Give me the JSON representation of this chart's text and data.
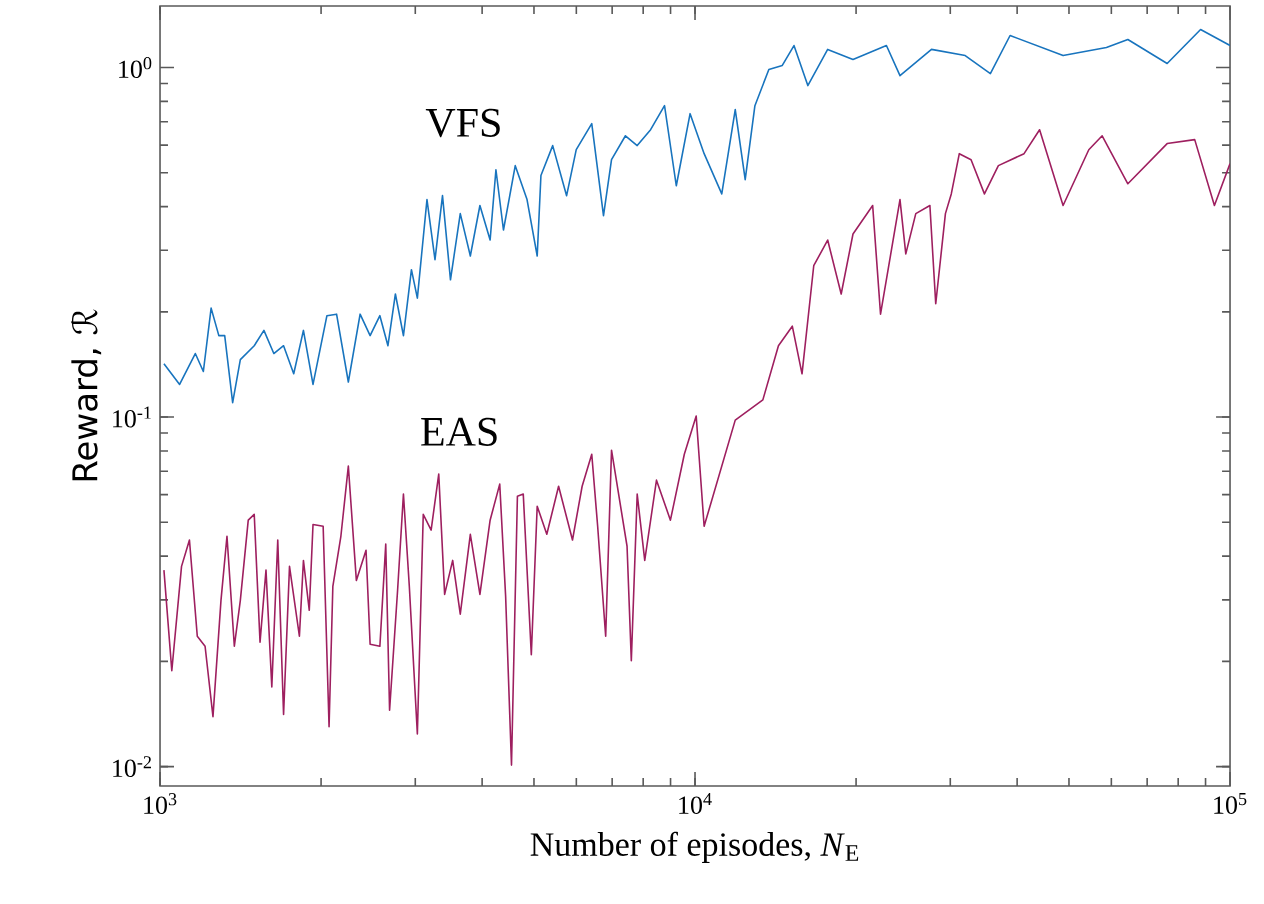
{
  "chart_data": {
    "type": "line",
    "xlabel": "Number of episodes, *N*$_{E}$",
    "ylabel": "Reward, ℛ",
    "log": "xy",
    "grid": false,
    "legend": false,
    "marker": "none",
    "line_style": "solid",
    "xlim": [
      1000,
      100000
    ],
    "ylim": [
      0.0088,
      1.5
    ],
    "xticks": [
      {
        "value": 1000,
        "label": "10$^{3}$"
      },
      {
        "value": 10000,
        "label": "10$^{4}$"
      },
      {
        "value": 100000,
        "label": "10$^{5}$"
      }
    ],
    "yticks": [
      {
        "value": 0.01,
        "label": "10$^{-2}$"
      },
      {
        "value": 0.1,
        "label": "10$^{-1}$"
      },
      {
        "value": 1,
        "label": "10$^{0}$"
      }
    ],
    "series": [
      {
        "name": "VFS",
        "color": "#1874be",
        "x": [
          1017,
          1088,
          1164,
          1205,
          1246,
          1288,
          1321,
          1367,
          1413,
          1500,
          1564,
          1632,
          1702,
          1778,
          1854,
          1932,
          2051,
          2138,
          2249,
          2366,
          2470,
          2576,
          2667,
          2754,
          2851,
          2951,
          3027,
          3155,
          3266,
          3373,
          3491,
          3641,
          3802,
          3963,
          4140,
          4245,
          4385,
          4613,
          4853,
          5070,
          5152,
          5420,
          5754,
          5998,
          6412,
          6745,
          6982,
          7413,
          7798,
          8260,
          8770,
          9226,
          9790,
          10400,
          11220,
          11890,
          12410,
          12940,
          13740,
          14560,
          15310,
          16250,
          17700,
          19740,
          22790,
          24160,
          27670,
          31990,
          35650,
          38810,
          48750,
          58750,
          64420,
          76300,
          88100,
          100000
        ],
        "values": [
          0.142,
          0.124,
          0.152,
          0.135,
          0.205,
          0.171,
          0.171,
          0.11,
          0.146,
          0.16,
          0.177,
          0.152,
          0.16,
          0.133,
          0.177,
          0.124,
          0.195,
          0.197,
          0.126,
          0.197,
          0.171,
          0.195,
          0.16,
          0.225,
          0.171,
          0.264,
          0.219,
          0.419,
          0.282,
          0.43,
          0.247,
          0.382,
          0.289,
          0.403,
          0.321,
          0.51,
          0.343,
          0.524,
          0.419,
          0.289,
          0.491,
          0.598,
          0.43,
          0.582,
          0.691,
          0.377,
          0.545,
          0.638,
          0.598,
          0.664,
          0.778,
          0.459,
          0.738,
          0.567,
          0.435,
          0.758,
          0.478,
          0.778,
          0.987,
          1.014,
          1.156,
          0.888,
          1.127,
          1.054,
          1.156,
          0.948,
          1.127,
          1.082,
          0.961,
          1.235,
          1.082,
          1.141,
          1.203,
          1.027,
          1.285,
          1.156
        ]
      },
      {
        "name": "EAS",
        "color": "#9e1f5f",
        "x": [
          1017,
          1052,
          1097,
          1135,
          1174,
          1214,
          1256,
          1300,
          1334,
          1377,
          1413,
          1462,
          1500,
          1538,
          1578,
          1618,
          1660,
          1702,
          1746,
          1822,
          1854,
          1901,
          1932,
          2018,
          2070,
          2104,
          2178,
          2249,
          2328,
          2427,
          2470,
          2576,
          2642,
          2686,
          2780,
          2851,
          2924,
          3027,
          3105,
          3212,
          3319,
          3404,
          3524,
          3641,
          3802,
          3963,
          4140,
          4315,
          4426,
          4539,
          4656,
          4775,
          4943,
          5070,
          5284,
          5559,
          5902,
          6152,
          6412,
          6577,
          6808,
          6982,
          7464,
          7603,
          7798,
          8054,
          8472,
          8995,
          9550,
          10050,
          10400,
          11890,
          13390,
          14320,
          15200,
          15850,
          16670,
          17700,
          18760,
          19740,
          21480,
          22220,
          24160,
          24770,
          25860,
          27480,
          28180,
          29380,
          30130,
          31190,
          32810,
          34750,
          36900,
          41210,
          44060,
          48750,
          54450,
          57680,
          64420,
          76300,
          85900,
          93500,
          100000
        ],
        "values": [
          0.0365,
          0.0188,
          0.0374,
          0.0445,
          0.0236,
          0.0221,
          0.0139,
          0.0299,
          0.0456,
          0.0221,
          0.0299,
          0.0507,
          0.0527,
          0.0227,
          0.0365,
          0.0169,
          0.0445,
          0.0141,
          0.0374,
          0.0236,
          0.0389,
          0.028,
          0.0493,
          0.0487,
          0.013,
          0.0328,
          0.0456,
          0.0724,
          0.0341,
          0.0416,
          0.0224,
          0.0221,
          0.0433,
          0.0145,
          0.0319,
          0.0602,
          0.0328,
          0.0124,
          0.0527,
          0.0475,
          0.0687,
          0.0311,
          0.0389,
          0.0273,
          0.0462,
          0.0311,
          0.0507,
          0.0643,
          0.0307,
          0.0101,
          0.0594,
          0.0602,
          0.0209,
          0.0556,
          0.0462,
          0.0634,
          0.0445,
          0.0634,
          0.0783,
          0.0487,
          0.0236,
          0.0804,
          0.0427,
          0.0201,
          0.0602,
          0.0389,
          0.066,
          0.0507,
          0.0783,
          0.1007,
          0.0487,
          0.098,
          0.112,
          0.16,
          0.182,
          0.133,
          0.271,
          0.321,
          0.225,
          0.334,
          0.403,
          0.197,
          0.419,
          0.293,
          0.382,
          0.403,
          0.211,
          0.382,
          0.435,
          0.567,
          0.545,
          0.435,
          0.524,
          0.567,
          0.664,
          0.403,
          0.582,
          0.638,
          0.465,
          0.606,
          0.622,
          0.403,
          0.531
        ]
      }
    ]
  }
}
